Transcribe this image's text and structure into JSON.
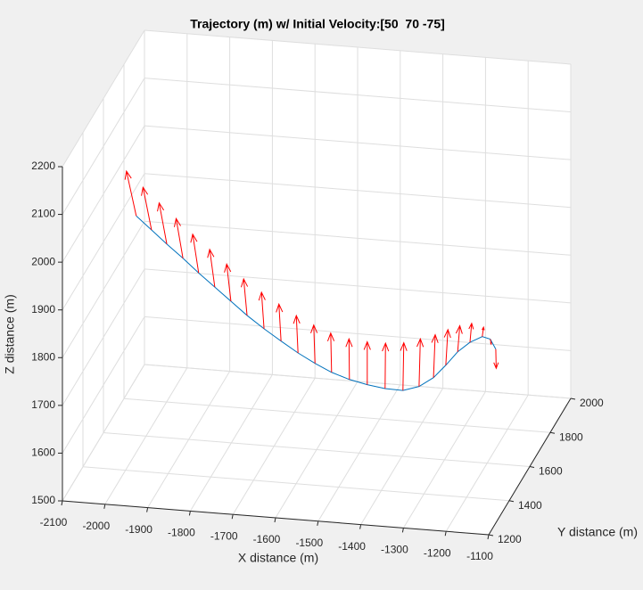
{
  "chart_data": {
    "type": "line3d",
    "title": "Trajectory (m) w/ Initial Velocity:[50  70 -75]",
    "xlabel": "X distance (m)",
    "ylabel": "Y distance (m)",
    "zlabel": "Z distance (m)",
    "x": [
      -1999,
      -1967,
      -1935,
      -1901,
      -1868,
      -1834,
      -1800,
      -1766,
      -1730,
      -1694,
      -1658,
      -1622,
      -1587,
      -1549,
      -1511,
      -1473,
      -1435,
      -1401,
      -1371,
      -1346,
      -1322,
      -1297,
      -1272,
      -1257,
      -1248
    ],
    "y": [
      1500,
      1516,
      1532,
      1548,
      1564,
      1580,
      1596,
      1612,
      1628,
      1644,
      1660,
      1676,
      1692,
      1708,
      1724,
      1740,
      1756,
      1772,
      1788,
      1804,
      1820,
      1836,
      1852,
      1868,
      1884
    ],
    "z": [
      1997,
      1964,
      1931,
      1898,
      1864,
      1831,
      1798,
      1765,
      1734,
      1705,
      1677,
      1652,
      1630,
      1612,
      1598,
      1587,
      1580,
      1585,
      1600,
      1622,
      1646,
      1662,
      1670,
      1660,
      1634
    ],
    "line_color": "#0072bd",
    "quiver": {
      "color": "#ff0000",
      "u": [
        -23,
        -20,
        -18,
        -16,
        -14,
        -12,
        -10,
        -8,
        -6,
        -5,
        -4,
        -3,
        -2,
        -1,
        0,
        1,
        2,
        3,
        4,
        5,
        5,
        4,
        3,
        2,
        1
      ],
      "w": [
        92,
        88,
        85,
        82,
        80,
        78,
        77,
        76,
        76,
        77,
        78,
        80,
        82,
        85,
        90,
        95,
        100,
        100,
        90,
        75,
        55,
        40,
        20,
        -10,
        -40
      ]
    },
    "xlim": [
      -2100,
      -1100
    ],
    "ylim": [
      1200,
      2000
    ],
    "zlim": [
      1500,
      2200
    ],
    "xticks": [
      -2100,
      -2000,
      -1900,
      -1800,
      -1700,
      -1600,
      -1500,
      -1400,
      -1300,
      -1200,
      -1100
    ],
    "yticks": [
      1200,
      1400,
      1600,
      1800,
      2000
    ],
    "zticks": [
      1500,
      1600,
      1700,
      1800,
      1900,
      2000,
      2100,
      2200
    ],
    "grid": true
  }
}
